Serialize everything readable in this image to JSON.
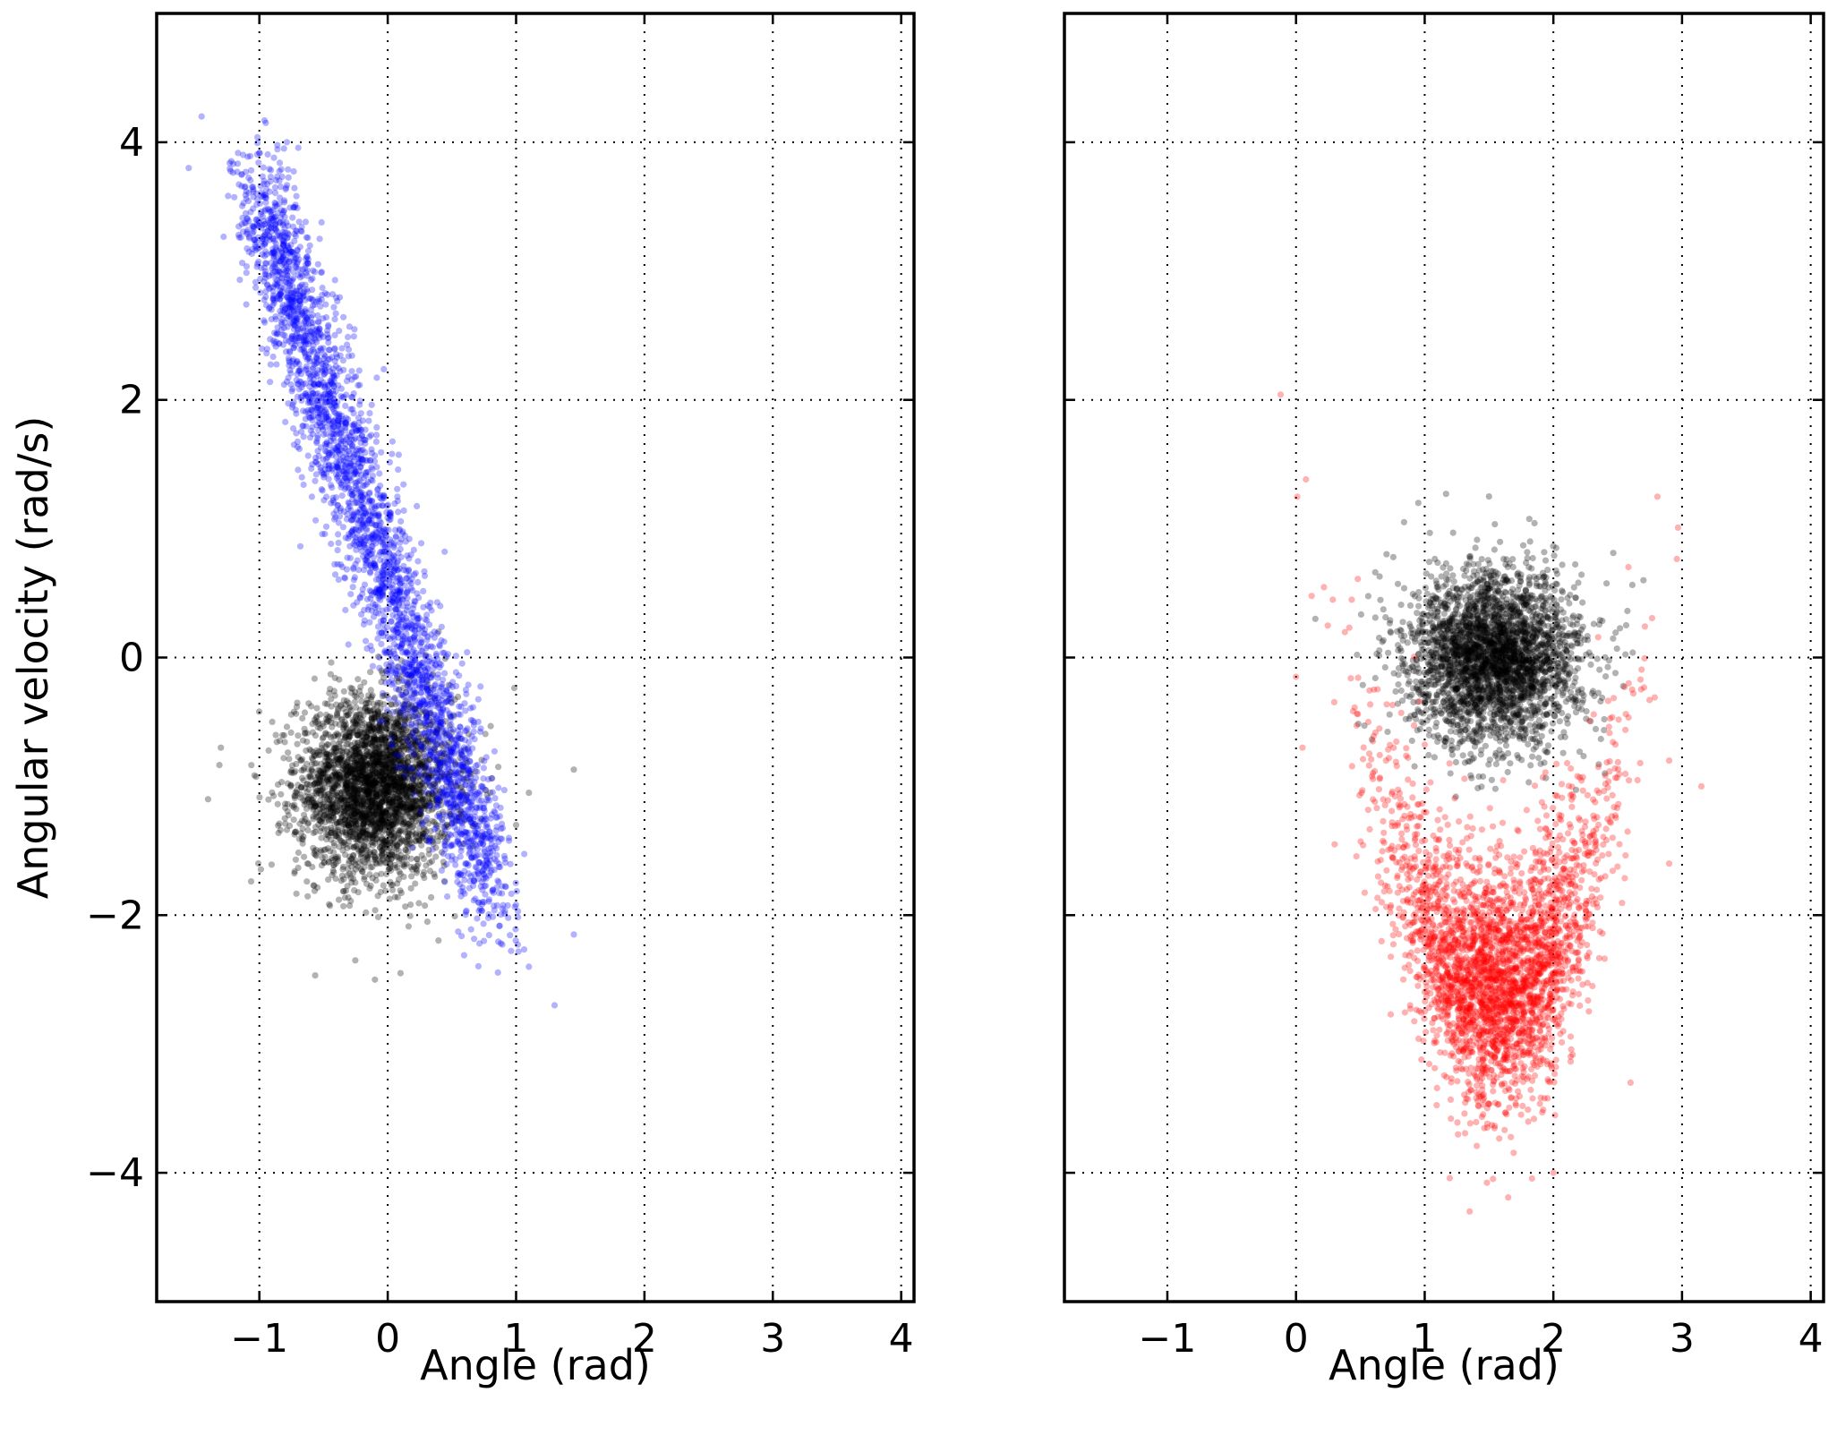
{
  "chart_data": [
    {
      "type": "scatter",
      "title": "",
      "xlabel": "Angle (rad)",
      "ylabel": "Angular velocity (rad/s)",
      "xlim": [
        -1.8,
        4.1
      ],
      "ylim": [
        -5,
        5
      ],
      "xticks": [
        -1,
        0,
        1,
        2,
        3,
        4
      ],
      "yticks": [
        -4,
        -2,
        0,
        2,
        4
      ],
      "xtick_labels": [
        "−1",
        "0",
        "1",
        "2",
        "3",
        "4"
      ],
      "ytick_labels": [
        "−4",
        "−2",
        "0",
        "2",
        "4"
      ],
      "grid": true,
      "series": [
        {
          "color": "#000000",
          "alpha": 0.3,
          "n_points": 3000,
          "distribution": "gaussian cloud",
          "center": [
            -0.1,
            -1.0
          ],
          "std": [
            0.3,
            0.35
          ],
          "sample_points": [
            [
              -1.4,
              -1.1
            ],
            [
              -1.3,
              -0.7
            ],
            [
              -0.9,
              -0.5
            ],
            [
              -0.1,
              -2.5
            ],
            [
              0.1,
              -2.45
            ],
            [
              1.0,
              -1.3
            ],
            [
              1.1,
              -1.05
            ],
            [
              1.45,
              -0.87
            ]
          ]
        },
        {
          "color": "#0000ff",
          "alpha": 0.3,
          "n_points": 3000,
          "distribution": "linear band",
          "band_start": [
            -0.9,
            3.3
          ],
          "band_end": [
            0.7,
            -1.5
          ],
          "band_width": 0.25,
          "sample_points": [
            [
              -1.55,
              3.8
            ],
            [
              -1.45,
              4.2
            ],
            [
              -0.95,
              4.15
            ],
            [
              0.75,
              -2.2
            ],
            [
              1.1,
              -2.4
            ],
            [
              1.3,
              -2.7
            ],
            [
              1.45,
              -2.15
            ]
          ]
        }
      ]
    },
    {
      "type": "scatter",
      "title": "",
      "xlabel": "Angle (rad)",
      "ylabel": "",
      "xlim": [
        -1.8,
        4.1
      ],
      "ylim": [
        -5,
        5
      ],
      "xticks": [
        -1,
        0,
        1,
        2,
        3,
        4
      ],
      "yticks": [
        -4,
        -2,
        0,
        2,
        4
      ],
      "xtick_labels": [
        "−1",
        "0",
        "1",
        "2",
        "3",
        "4"
      ],
      "ytick_labels": [],
      "grid": true,
      "series": [
        {
          "color": "#000000",
          "alpha": 0.3,
          "n_points": 3000,
          "distribution": "gaussian cloud",
          "center": [
            1.55,
            0.0
          ],
          "std": [
            0.33,
            0.33
          ],
          "sample_points": [
            [
              0.95,
              1.2
            ],
            [
              1.5,
              1.25
            ],
            [
              2.7,
              0.6
            ],
            [
              2.4,
              -0.9
            ],
            [
              1.2,
              -0.9
            ],
            [
              0.15,
              0.3
            ]
          ]
        },
        {
          "color": "#ff0000",
          "alpha": 0.3,
          "n_points": 3000,
          "distribution": "u-shaped cloud",
          "center": [
            1.55,
            -2.9
          ],
          "std": [
            0.3,
            0.4
          ],
          "sample_points": [
            [
              0.0,
              -0.15
            ],
            [
              0.05,
              -0.7
            ],
            [
              0.3,
              -1.45
            ],
            [
              2.9,
              -0.8
            ],
            [
              3.15,
              -1.0
            ],
            [
              2.9,
              -1.6
            ],
            [
              1.35,
              -4.3
            ],
            [
              2.0,
              -4.0
            ],
            [
              2.6,
              -3.3
            ]
          ]
        }
      ]
    }
  ]
}
